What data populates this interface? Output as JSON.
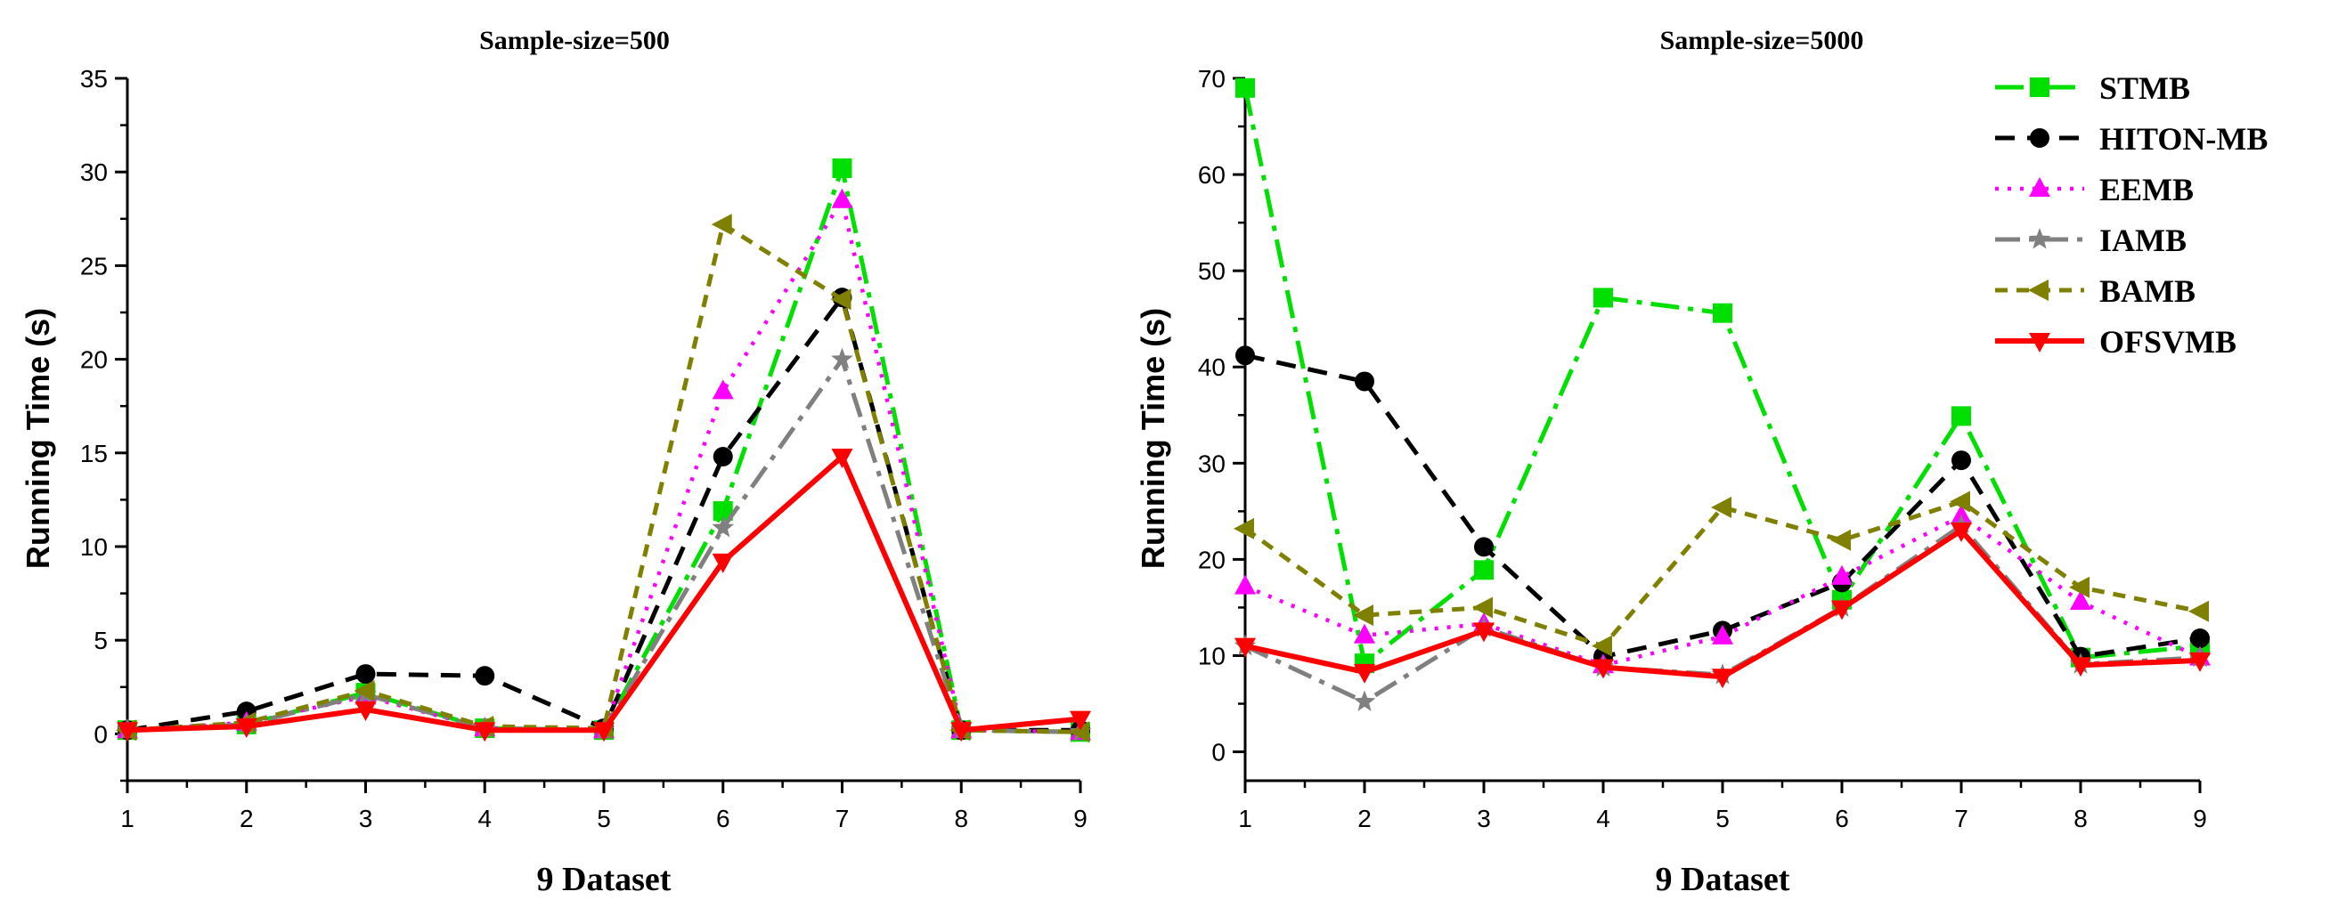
{
  "chart_data": [
    {
      "type": "line",
      "title": "Sample-size=500",
      "xlabel": "9 Dataset",
      "ylabel": "Running Time (s)",
      "x": [
        1,
        2,
        3,
        4,
        5,
        6,
        7,
        8,
        9
      ],
      "xlim": [
        1,
        9
      ],
      "ylim": [
        -2.5,
        35
      ],
      "yticks": [
        0,
        5,
        10,
        15,
        20,
        25,
        30,
        35
      ],
      "series": [
        {
          "name": "STMB",
          "color": "#00e000",
          "values": [
            0.2,
            0.5,
            2.2,
            0.3,
            0.2,
            11.9,
            30.2,
            0.2,
            0.1
          ]
        },
        {
          "name": "HITON-MB",
          "color": "#000000",
          "values": [
            0.2,
            1.2,
            3.2,
            3.1,
            0.3,
            14.8,
            23.3,
            0.2,
            0.2
          ]
        },
        {
          "name": "EEMB",
          "color": "#ff00ff",
          "values": [
            0.2,
            0.6,
            2.0,
            0.3,
            0.2,
            18.3,
            28.5,
            0.2,
            0.1
          ]
        },
        {
          "name": "IAMB",
          "color": "#808080",
          "values": [
            0.2,
            0.5,
            2.1,
            0.3,
            0.2,
            11.0,
            20.0,
            0.2,
            0.1
          ]
        },
        {
          "name": "BAMB",
          "color": "#808000",
          "values": [
            0.2,
            0.6,
            2.3,
            0.4,
            0.3,
            27.2,
            23.2,
            0.2,
            0.1
          ]
        },
        {
          "name": "OFSVMB",
          "color": "#ff0000",
          "values": [
            0.2,
            0.4,
            1.3,
            0.2,
            0.2,
            9.2,
            14.8,
            0.2,
            0.8
          ]
        }
      ]
    },
    {
      "type": "line",
      "title": "Sample-size=5000",
      "xlabel": "9 Dataset",
      "ylabel": "Running Time (s)",
      "x": [
        1,
        2,
        3,
        4,
        5,
        6,
        7,
        8,
        9
      ],
      "xlim": [
        1,
        9
      ],
      "ylim": [
        -3,
        70
      ],
      "yticks": [
        0,
        10,
        20,
        30,
        40,
        50,
        60,
        70
      ],
      "legend": "top-right",
      "series": [
        {
          "name": "STMB",
          "color": "#00e000",
          "values": [
            69,
            9.2,
            18.9,
            47.2,
            45.6,
            15.8,
            34.9,
            9.8,
            11.0
          ]
        },
        {
          "name": "HITON-MB",
          "color": "#000000",
          "values": [
            41.2,
            38.5,
            21.3,
            9.9,
            12.6,
            17.6,
            30.3,
            9.9,
            11.8
          ]
        },
        {
          "name": "EEMB",
          "color": "#ff00ff",
          "values": [
            17.2,
            12.1,
            13.3,
            9.0,
            12.0,
            18.2,
            24.5,
            15.6,
            9.8
          ]
        },
        {
          "name": "IAMB",
          "color": "#808080",
          "values": [
            11.0,
            5.2,
            12.9,
            8.8,
            8.0,
            15.0,
            23.5,
            9.1,
            9.8
          ]
        },
        {
          "name": "BAMB",
          "color": "#808000",
          "values": [
            23.2,
            14.2,
            15.0,
            11.0,
            25.4,
            22.0,
            26.0,
            17.1,
            14.6
          ]
        },
        {
          "name": "OFSVMB",
          "color": "#ff0000",
          "values": [
            11.0,
            8.3,
            12.6,
            8.8,
            7.8,
            14.9,
            23.0,
            9.0,
            9.5
          ]
        }
      ]
    }
  ]
}
